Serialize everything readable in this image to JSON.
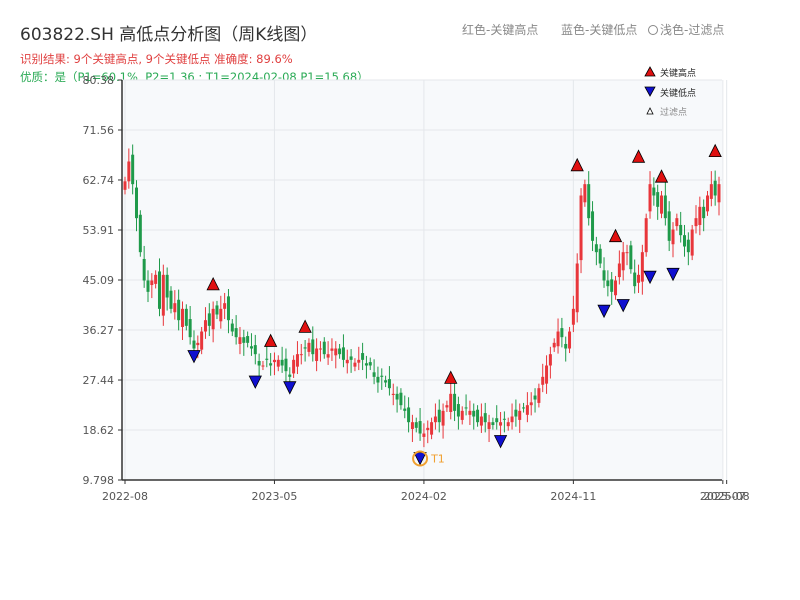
{
  "header": {
    "title": "603822.SH 高低点分析图（周K线图）",
    "legend_red": "红色-关键高点",
    "legend_blue": "蓝色-关键低点",
    "legend_light": "浅色-过滤点",
    "result_line": "识别结果: 9个关键高点, 9个关键低点   准确度: 89.6%",
    "quality_line": "优质：是（P1=60.1%, P2=1.36 ; T1=2024-02-08 P1=15.68）"
  },
  "colors": {
    "up": "#e8363b",
    "down": "#1f9a4a",
    "high_marker": "#e01010",
    "low_marker": "#1010d0",
    "t1": "#f0a030",
    "plot_bg": "#f7f9fb"
  },
  "chart_data": {
    "type": "candlestick",
    "yticks": [
      "80.38",
      "71.56",
      "62.74",
      "53.91",
      "45.09",
      "36.27",
      "27.44",
      "18.62",
      "9.798"
    ],
    "ylim": [
      9.798,
      80.38
    ],
    "xticks": [
      {
        "label": "2022-08",
        "i": 0
      },
      {
        "label": "2023-05",
        "i": 39
      },
      {
        "label": "2024-02",
        "i": 78
      },
      {
        "label": "2024-11",
        "i": 117
      },
      {
        "label": "2025-07",
        "i": 156
      },
      {
        "label": "2025-08",
        "i": 157
      }
    ],
    "legend": {
      "high": "关键高点",
      "low": "关键低点",
      "filtered": "过滤点"
    },
    "closes": [
      62.5,
      66.0,
      62.0,
      56.0,
      50.0,
      45.0,
      43.0,
      45.0,
      46.0,
      40.0,
      46.0,
      42.0,
      40.0,
      41.0,
      38.0,
      40.0,
      37.0,
      35.0,
      33.0,
      34.0,
      36.0,
      38.0,
      37.0,
      40.0,
      39.0,
      40.0,
      41.0,
      38.0,
      36.0,
      35.0,
      35.0,
      34.0,
      34.0,
      33.0,
      32.0,
      30.0,
      30.0,
      31.0,
      30.0,
      31.0,
      31.0,
      30.0,
      29.0,
      28.0,
      31.0,
      32.0,
      32.0,
      33.0,
      34.0,
      32.0,
      33.0,
      33.0,
      32.0,
      32.0,
      33.0,
      33.0,
      32.0,
      31.0,
      31.0,
      31.0,
      30.5,
      31.0,
      31.0,
      30.0,
      30.0,
      28.0,
      27.0,
      28.0,
      27.0,
      26.0,
      25.0,
      24.0,
      23.0,
      22.0,
      20.0,
      20.0,
      19.0,
      18.0,
      18.0,
      19.0,
      20.0,
      21.0,
      20.0,
      22.0,
      23.0,
      25.0,
      22.0,
      21.0,
      22.0,
      22.5,
      22.0,
      21.0,
      20.0,
      21.0,
      20.0,
      20.0,
      19.5,
      20.0,
      20.0,
      20.5,
      20.0,
      21.0,
      21.0,
      22.0,
      22.5,
      23.0,
      23.5,
      24.0,
      26.0,
      28.0,
      30.0,
      32.0,
      34.0,
      36.0,
      35.0,
      33.0,
      36.0,
      40.0,
      48.0,
      60.0,
      62.0,
      56.0,
      52.0,
      50.0,
      48.0,
      45.0,
      44.0,
      43.0,
      45.0,
      48.0,
      50.0,
      50.0,
      47.0,
      44.0,
      46.0,
      50.0,
      56.0,
      62.0,
      60.0,
      58.0,
      60.0,
      56.0,
      52.0,
      54.0,
      56.0,
      53.0,
      51.0,
      50.0,
      54.0,
      56.0,
      58.0,
      56.0,
      60.0,
      62.0,
      60.0,
      62.0
    ],
    "key_highs": [
      {
        "i": 23,
        "value": 43.0
      },
      {
        "i": 38,
        "value": 33.0
      },
      {
        "i": 47,
        "value": 35.5
      },
      {
        "i": 85,
        "value": 26.5
      },
      {
        "i": 118,
        "value": 64.0
      },
      {
        "i": 128,
        "value": 51.5
      },
      {
        "i": 134,
        "value": 65.5
      },
      {
        "i": 140,
        "value": 62.0
      },
      {
        "i": 154,
        "value": 66.5
      }
    ],
    "key_lows": [
      {
        "i": 18,
        "value": 33.0
      },
      {
        "i": 34,
        "value": 28.5
      },
      {
        "i": 43,
        "value": 27.5
      },
      {
        "i": 77,
        "value": 15.0
      },
      {
        "i": 98,
        "value": 18.0
      },
      {
        "i": 125,
        "value": 41.0
      },
      {
        "i": 130,
        "value": 42.0
      },
      {
        "i": 137,
        "value": 47.0
      },
      {
        "i": 143,
        "value": 47.5
      }
    ],
    "t1": {
      "i": 77,
      "value": 15.0,
      "label": "T1"
    }
  }
}
